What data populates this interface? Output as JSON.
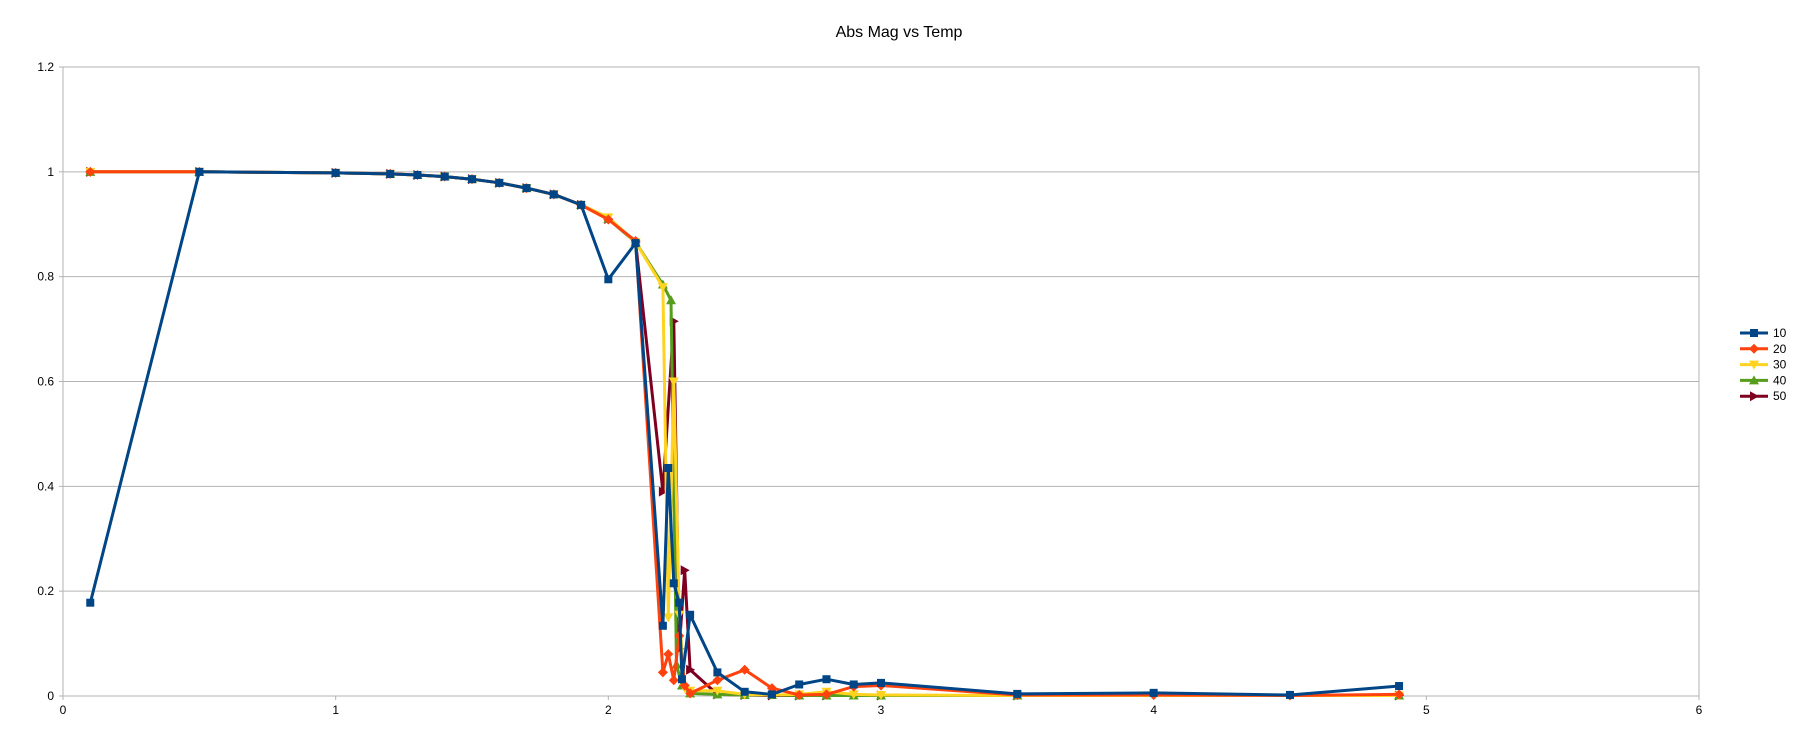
{
  "chart_data": {
    "type": "line",
    "title": "Abs Mag vs Temp",
    "xlabel": "",
    "ylabel": "",
    "xlim": [
      0,
      6
    ],
    "ylim": [
      0,
      1.2
    ],
    "x_ticks": [
      "0",
      "1",
      "2",
      "3",
      "4",
      "5",
      "6"
    ],
    "y_ticks": [
      "0",
      "0.2",
      "0.4",
      "0.6",
      "0.8",
      "1",
      "1.2"
    ],
    "grid": "horizontal",
    "legend_position": "right",
    "series": [
      {
        "name": "10",
        "color": "#004586",
        "marker": "square",
        "points": [
          [
            0.1,
            0.178
          ],
          [
            0.5,
            1.0
          ],
          [
            1.0,
            0.998
          ],
          [
            1.2,
            0.996
          ],
          [
            1.3,
            0.994
          ],
          [
            1.4,
            0.991
          ],
          [
            1.5,
            0.986
          ],
          [
            1.6,
            0.979
          ],
          [
            1.7,
            0.969
          ],
          [
            1.8,
            0.957
          ],
          [
            1.9,
            0.937
          ],
          [
            2.0,
            0.795
          ],
          [
            2.1,
            0.864
          ],
          [
            2.2,
            0.134
          ],
          [
            2.22,
            0.435
          ],
          [
            2.24,
            0.215
          ],
          [
            2.26,
            0.178
          ],
          [
            2.27,
            0.032
          ],
          [
            2.3,
            0.155
          ],
          [
            2.4,
            0.045
          ],
          [
            2.5,
            0.008
          ],
          [
            2.6,
            0.003
          ],
          [
            2.7,
            0.022
          ],
          [
            2.8,
            0.032
          ],
          [
            2.9,
            0.022
          ],
          [
            3.0,
            0.025
          ],
          [
            3.5,
            0.004
          ],
          [
            4.0,
            0.006
          ],
          [
            4.5,
            0.002
          ],
          [
            4.9,
            0.019
          ]
        ]
      },
      {
        "name": "20",
        "color": "#ff420e",
        "marker": "diamond",
        "points": [
          [
            0.1,
            1.0
          ],
          [
            0.5,
            1.0
          ],
          [
            1.0,
            0.998
          ],
          [
            1.2,
            0.996
          ],
          [
            1.3,
            0.994
          ],
          [
            1.4,
            0.991
          ],
          [
            1.5,
            0.986
          ],
          [
            1.6,
            0.979
          ],
          [
            1.7,
            0.969
          ],
          [
            1.8,
            0.957
          ],
          [
            1.9,
            0.937
          ],
          [
            2.0,
            0.909
          ],
          [
            2.1,
            0.868
          ],
          [
            2.2,
            0.045
          ],
          [
            2.22,
            0.08
          ],
          [
            2.24,
            0.03
          ],
          [
            2.26,
            0.115
          ],
          [
            2.28,
            0.02
          ],
          [
            2.3,
            0.005
          ],
          [
            2.4,
            0.03
          ],
          [
            2.5,
            0.05
          ],
          [
            2.6,
            0.015
          ],
          [
            2.7,
            0.002
          ],
          [
            2.8,
            0.003
          ],
          [
            2.9,
            0.018
          ],
          [
            3.0,
            0.02
          ],
          [
            3.5,
            0.002
          ],
          [
            4.0,
            0.002
          ],
          [
            4.5,
            0.001
          ],
          [
            4.9,
            0.003
          ]
        ]
      },
      {
        "name": "30",
        "color": "#ffd320",
        "marker": "triangle-down",
        "points": [
          [
            0.1,
            1.0
          ],
          [
            0.5,
            1.0
          ],
          [
            1.0,
            0.998
          ],
          [
            1.2,
            0.996
          ],
          [
            1.3,
            0.994
          ],
          [
            1.4,
            0.991
          ],
          [
            1.5,
            0.986
          ],
          [
            1.6,
            0.979
          ],
          [
            1.7,
            0.969
          ],
          [
            1.8,
            0.957
          ],
          [
            1.9,
            0.937
          ],
          [
            2.0,
            0.913
          ],
          [
            2.1,
            0.866
          ],
          [
            2.2,
            0.78
          ],
          [
            2.22,
            0.15
          ],
          [
            2.24,
            0.6
          ],
          [
            2.26,
            0.155
          ],
          [
            2.28,
            0.015
          ],
          [
            2.3,
            0.01
          ],
          [
            2.4,
            0.01
          ],
          [
            2.5,
            0.003
          ],
          [
            2.6,
            0.002
          ],
          [
            2.7,
            0.003
          ],
          [
            2.8,
            0.008
          ],
          [
            2.9,
            0.003
          ],
          [
            3.0,
            0.002
          ],
          [
            3.5,
            0.001
          ],
          [
            4.9,
            0.001
          ]
        ]
      },
      {
        "name": "40",
        "color": "#579d1c",
        "marker": "triangle-up",
        "points": [
          [
            0.1,
            1.0
          ],
          [
            0.5,
            1.0
          ],
          [
            1.0,
            0.998
          ],
          [
            1.2,
            0.996
          ],
          [
            1.3,
            0.994
          ],
          [
            1.4,
            0.991
          ],
          [
            1.5,
            0.986
          ],
          [
            1.6,
            0.979
          ],
          [
            1.7,
            0.969
          ],
          [
            1.8,
            0.957
          ],
          [
            1.9,
            0.937
          ],
          [
            2.0,
            0.91
          ],
          [
            2.1,
            0.866
          ],
          [
            2.2,
            0.785
          ],
          [
            2.23,
            0.755
          ],
          [
            2.25,
            0.06
          ],
          [
            2.27,
            0.02
          ],
          [
            2.3,
            0.005
          ],
          [
            2.4,
            0.003
          ],
          [
            2.5,
            0.002
          ],
          [
            2.6,
            0.002
          ],
          [
            2.7,
            0.001
          ],
          [
            2.8,
            0.001
          ],
          [
            2.9,
            0.001
          ],
          [
            3.0,
            0.001
          ],
          [
            3.5,
            0.001
          ],
          [
            4.9,
            0.001
          ]
        ]
      },
      {
        "name": "50",
        "color": "#7e0021",
        "marker": "triangle-right",
        "points": [
          [
            0.1,
            1.0
          ],
          [
            0.5,
            1.0
          ],
          [
            1.0,
            0.998
          ],
          [
            1.2,
            0.996
          ],
          [
            1.3,
            0.994
          ],
          [
            1.4,
            0.991
          ],
          [
            1.5,
            0.986
          ],
          [
            1.6,
            0.979
          ],
          [
            1.7,
            0.969
          ],
          [
            1.8,
            0.957
          ],
          [
            1.9,
            0.937
          ],
          [
            2.0,
            0.91
          ],
          [
            2.1,
            0.866
          ],
          [
            2.2,
            0.39
          ],
          [
            2.24,
            0.715
          ],
          [
            2.26,
            0.09
          ],
          [
            2.28,
            0.24
          ],
          [
            2.3,
            0.05
          ],
          [
            2.4,
            0.003
          ],
          [
            2.5,
            0.002
          ],
          [
            2.6,
            0.001
          ],
          [
            2.7,
            0.001
          ],
          [
            2.8,
            0.001
          ],
          [
            3.0,
            0.001
          ],
          [
            3.5,
            0.001
          ],
          [
            4.9,
            0.001
          ]
        ]
      }
    ]
  }
}
